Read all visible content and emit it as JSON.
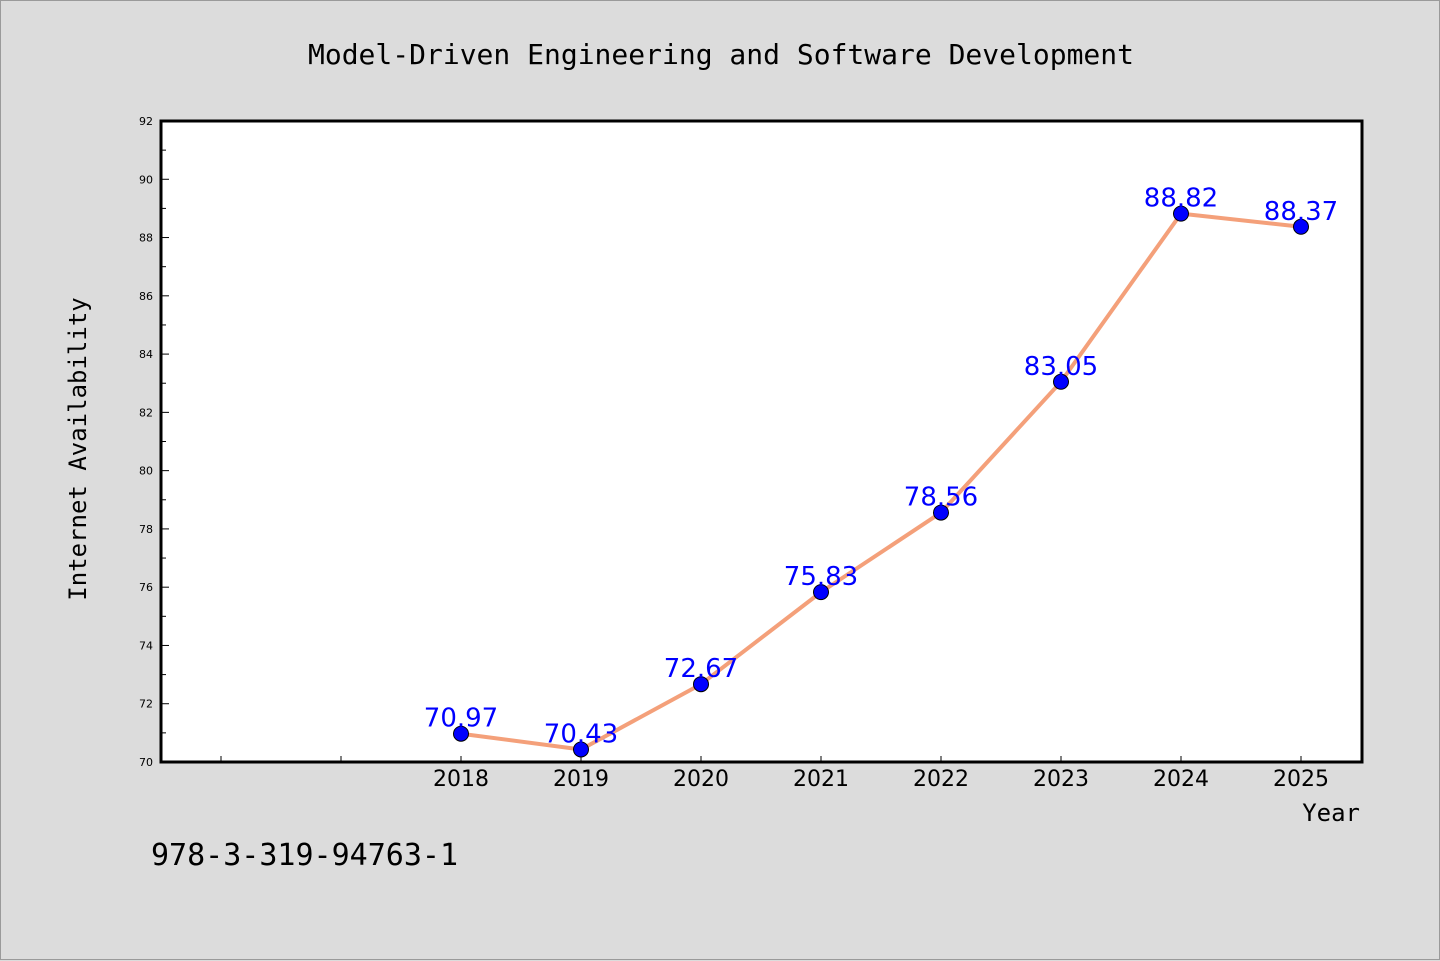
{
  "chart_data": {
    "type": "line",
    "title": "Model-Driven Engineering and Software Development",
    "xlabel": "Year",
    "ylabel": "Internet Availability",
    "categories": [
      "2018",
      "2019",
      "2020",
      "2021",
      "2022",
      "2023",
      "2024",
      "2025"
    ],
    "series": [
      {
        "values": [
          70.97,
          70.43,
          72.67,
          75.83,
          78.56,
          83.05,
          88.82,
          88.37
        ],
        "line_color": "#f4a07a",
        "marker_color": "#0000ff"
      }
    ],
    "data_labels": [
      "70.97",
      "70.43",
      "72.67",
      "75.83",
      "78.56",
      "83.05",
      "88.82",
      "88.37"
    ],
    "ylim": [
      70,
      92
    ],
    "y_ticks": [
      "70",
      "72",
      "74",
      "76",
      "78",
      "80",
      "82",
      "84",
      "86",
      "88",
      "90",
      "92"
    ],
    "grid": false,
    "legend": "none"
  },
  "footer": {
    "isbn": "978-3-319-94763-1"
  },
  "colors": {
    "background": "#dcdcdc",
    "plot_background": "#ffffff",
    "label_color": "#0000ff"
  }
}
